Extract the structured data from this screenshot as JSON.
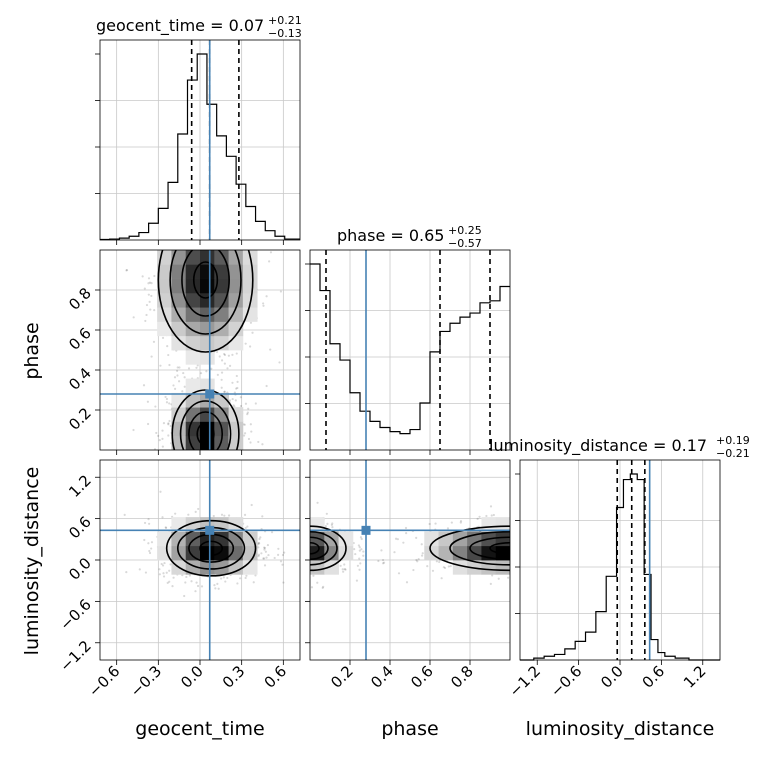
{
  "chart_data": {
    "type": "corner",
    "parameters": [
      "geocent_time",
      "phase",
      "luminosity_distance"
    ],
    "truths": {
      "geocent_time": 0.07,
      "phase": 0.28,
      "luminosity_distance": 0.43
    },
    "truth_color": "#4682b4",
    "ranges": {
      "geocent_time": [
        -0.72,
        0.72
      ],
      "phase": [
        0.0,
        1.0
      ],
      "luminosity_distance": [
        -1.45,
        1.45
      ]
    },
    "ticks": {
      "geocent_time": [
        "−0.6",
        "−0.3",
        "0.0",
        "0.3",
        "0.6"
      ],
      "phase": [
        "0.2",
        "0.4",
        "0.6",
        "0.8"
      ],
      "luminosity_distance": [
        "−1.2",
        "−0.6",
        "0.0",
        "0.6",
        "1.2"
      ]
    },
    "tick_values": {
      "geocent_time": [
        -0.6,
        -0.3,
        0.0,
        0.3,
        0.6
      ],
      "phase": [
        0.2,
        0.4,
        0.6,
        0.8
      ],
      "luminosity_distance": [
        -1.2,
        -0.6,
        0.0,
        0.6,
        1.2
      ]
    },
    "titles": [
      {
        "param": "geocent_time",
        "label": "geocent_time = 0.07",
        "plus": "+0.21",
        "minus": "−0.13"
      },
      {
        "param": "phase",
        "label": "phase = 0.65",
        "plus": "+0.25",
        "minus": "−0.57"
      },
      {
        "param": "luminosity_distance",
        "label": "luminosity_distance = 0.17",
        "plus": "+0.19",
        "minus": "−0.21"
      }
    ],
    "quantiles": {
      "geocent_time": [
        -0.06,
        0.07,
        0.28
      ],
      "phase": [
        0.08,
        0.65,
        0.9
      ],
      "luminosity_distance": [
        -0.04,
        0.17,
        0.36
      ]
    },
    "histograms": {
      "geocent_time": {
        "edges": [
          -0.72,
          -0.65,
          -0.58,
          -0.51,
          -0.44,
          -0.37,
          -0.3,
          -0.23,
          -0.16,
          -0.09,
          -0.02,
          0.05,
          0.12,
          0.19,
          0.26,
          0.33,
          0.4,
          0.47,
          0.54,
          0.61,
          0.72
        ],
        "values": [
          0.003,
          0.005,
          0.01,
          0.02,
          0.04,
          0.09,
          0.17,
          0.31,
          0.57,
          0.86,
          1.0,
          0.73,
          0.56,
          0.45,
          0.3,
          0.18,
          0.1,
          0.05,
          0.02,
          0.005
        ]
      },
      "phase": {
        "edges": [
          0.0,
          0.05,
          0.1,
          0.15,
          0.2,
          0.25,
          0.3,
          0.35,
          0.4,
          0.45,
          0.5,
          0.55,
          0.6,
          0.65,
          0.7,
          0.75,
          0.8,
          0.85,
          0.9,
          0.95,
          1.0
        ],
        "values": [
          0.91,
          0.78,
          0.52,
          0.44,
          0.28,
          0.19,
          0.14,
          0.11,
          0.09,
          0.08,
          0.1,
          0.23,
          0.48,
          0.58,
          0.62,
          0.65,
          0.67,
          0.72,
          0.73,
          0.8
        ]
      },
      "luminosity_distance": {
        "edges": [
          -1.45,
          -1.25,
          -1.1,
          -0.95,
          -0.8,
          -0.65,
          -0.5,
          -0.35,
          -0.2,
          -0.05,
          0.05,
          0.15,
          0.25,
          0.35,
          0.45,
          0.55,
          0.65,
          0.8,
          1.0,
          1.45
        ],
        "values": [
          0.0,
          0.01,
          0.02,
          0.03,
          0.06,
          0.1,
          0.15,
          0.26,
          0.45,
          0.82,
          0.97,
          1.0,
          0.97,
          0.46,
          0.11,
          0.04,
          0.02,
          0.01,
          0.0
        ]
      }
    },
    "joint": [
      {
        "x": "geocent_time",
        "y": "phase",
        "modes": [
          {
            "x": 0.04,
            "y": 0.85,
            "sx": 0.17,
            "sy": 0.18,
            "w": 1.0
          },
          {
            "x": 0.04,
            "y": 0.08,
            "sx": 0.12,
            "sy": 0.11,
            "w": 1.1
          }
        ]
      },
      {
        "x": "geocent_time",
        "y": "luminosity_distance",
        "modes": [
          {
            "x": 0.08,
            "y": 0.17,
            "sx": 0.16,
            "sy": 0.2,
            "w": 1.0
          }
        ]
      },
      {
        "x": "phase",
        "y": "luminosity_distance",
        "modes": [
          {
            "x": 0.0,
            "y": 0.17,
            "sx": 0.09,
            "sy": 0.16,
            "w": 0.9
          },
          {
            "x": 1.0,
            "y": 0.17,
            "sx": 0.2,
            "sy": 0.16,
            "w": 1.0
          }
        ]
      }
    ]
  }
}
